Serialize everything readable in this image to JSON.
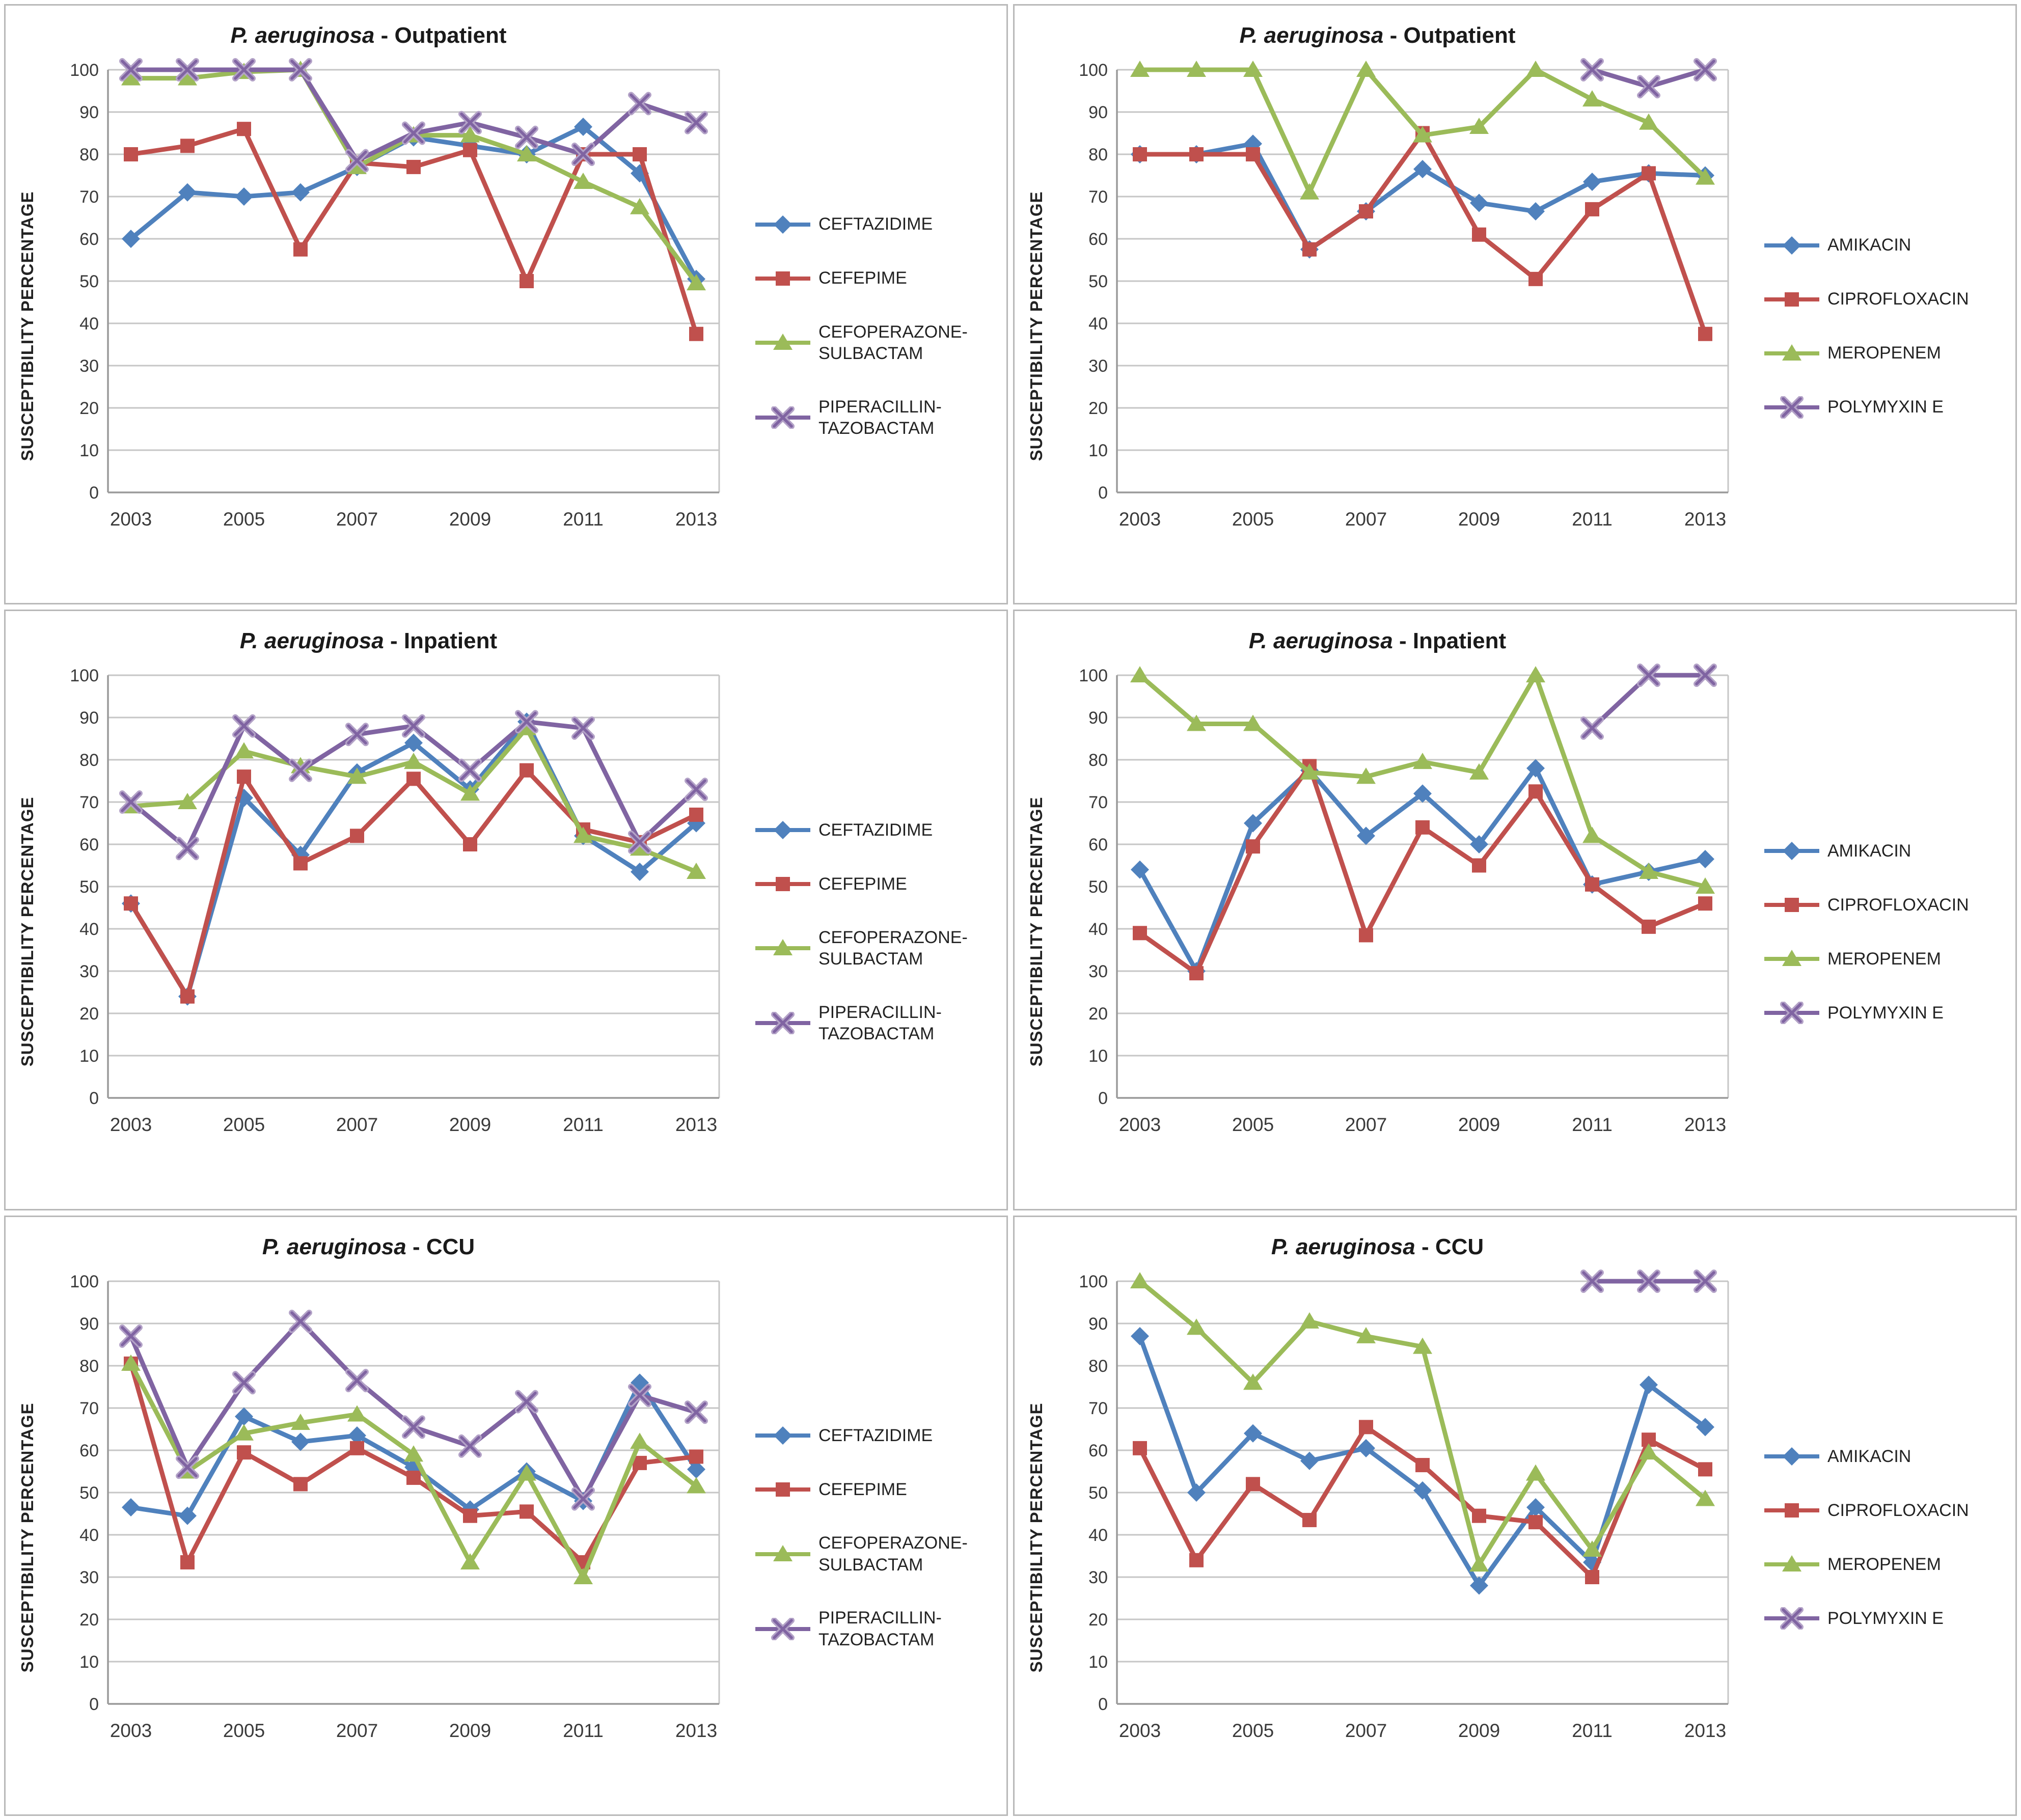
{
  "page": {
    "ylabel": "SUSCEPTIBILITY  PERCENTAGE"
  },
  "palette": {
    "blue": "#4F81BD",
    "red": "#C0504D",
    "green": "#9BBB59",
    "purple": "#8064A2"
  },
  "chart_data": [
    {
      "type": "line",
      "id": "outpatient-left",
      "title_italic": "P. aeruginosa",
      "title_suffix": " - Outpatient",
      "ylabel": "SUSCEPTIBILITY  PERCENTAGE",
      "x": [
        2003,
        2004,
        2005,
        2006,
        2007,
        2008,
        2009,
        2010,
        2011,
        2012,
        2013
      ],
      "x_tick_labels": [
        "2003",
        "2005",
        "2007",
        "2009",
        "2011",
        "2013"
      ],
      "ylim": [
        0,
        100
      ],
      "y_tick_step": 10,
      "grid": true,
      "legend_position": "right",
      "series": [
        {
          "name": "CEFTAZIDIME",
          "legend_label": "CEFTAZIDIME",
          "color": "#4F81BD",
          "marker": "diamond",
          "values": [
            60,
            71,
            70,
            71,
            77,
            84,
            82,
            80,
            86.5,
            75.5,
            50.5
          ]
        },
        {
          "name": "CEFEPIME",
          "legend_label": "CEFEPIME",
          "color": "#C0504D",
          "marker": "square",
          "values": [
            80,
            82,
            86,
            57.5,
            78,
            77,
            81,
            50,
            80,
            80,
            37.5
          ]
        },
        {
          "name": "CEFOPERAZONE-SULBACTAM",
          "legend_label": "CEFOPERAZONE-\nSULBACTAM",
          "color": "#9BBB59",
          "marker": "triangle",
          "values": [
            98,
            98,
            99.5,
            100,
            77,
            84.5,
            84.5,
            80,
            73.5,
            67.5,
            49.5
          ]
        },
        {
          "name": "PIPERACILLIN-TAZOBACTAM",
          "legend_label": "PIPERACILLIN-\nTAZOBACTAM",
          "color": "#8064A2",
          "marker": "x",
          "values": [
            100,
            100,
            100,
            100,
            78.5,
            85,
            87.5,
            84,
            80,
            92,
            87.5
          ]
        }
      ]
    },
    {
      "type": "line",
      "id": "outpatient-right",
      "title_italic": "P. aeruginosa",
      "title_suffix": " - Outpatient",
      "ylabel": "SUSCEPTIBILITY  PERCENTAGE",
      "x": [
        2003,
        2004,
        2005,
        2006,
        2007,
        2008,
        2009,
        2010,
        2011,
        2012,
        2013
      ],
      "x_tick_labels": [
        "2003",
        "2005",
        "2007",
        "2009",
        "2011",
        "2013"
      ],
      "ylim": [
        0,
        100
      ],
      "y_tick_step": 10,
      "grid": true,
      "legend_position": "right",
      "series": [
        {
          "name": "AMIKACIN",
          "legend_label": "AMIKACIN",
          "color": "#4F81BD",
          "marker": "diamond",
          "values": [
            80,
            80,
            82.5,
            57.5,
            66.5,
            76.5,
            68.5,
            66.5,
            73.5,
            75.5,
            75
          ]
        },
        {
          "name": "CIPROFLOXACIN",
          "legend_label": "CIPROFLOXACIN",
          "color": "#C0504D",
          "marker": "square",
          "values": [
            80,
            80,
            80,
            57.5,
            66.5,
            85,
            61,
            50.5,
            67,
            75.5,
            37.5
          ]
        },
        {
          "name": "MEROPENEM",
          "legend_label": "MEROPENEM",
          "color": "#9BBB59",
          "marker": "triangle",
          "values": [
            100,
            100,
            100,
            71,
            100,
            84.5,
            86.5,
            100,
            93,
            87.5,
            74.5
          ]
        },
        {
          "name": "POLYMYXIN E",
          "legend_label": "POLYMYXIN E",
          "color": "#8064A2",
          "marker": "x",
          "values": [
            null,
            null,
            null,
            null,
            null,
            null,
            null,
            null,
            100,
            96,
            100
          ]
        }
      ]
    },
    {
      "type": "line",
      "id": "inpatient-left",
      "title_italic": "P. aeruginosa",
      "title_suffix": " - Inpatient",
      "ylabel": "SUSCEPTIBILITY  PERCENTAGE",
      "x": [
        2003,
        2004,
        2005,
        2006,
        2007,
        2008,
        2009,
        2010,
        2011,
        2012,
        2013
      ],
      "x_tick_labels": [
        "2003",
        "2005",
        "2007",
        "2009",
        "2011",
        "2013"
      ],
      "ylim": [
        0,
        100
      ],
      "y_tick_step": 10,
      "grid": true,
      "legend_position": "right",
      "series": [
        {
          "name": "CEFTAZIDIME",
          "legend_label": "CEFTAZIDIME",
          "color": "#4F81BD",
          "marker": "diamond",
          "values": [
            46,
            24,
            71,
            57.5,
            77,
            84,
            73,
            89,
            62,
            53.5,
            65
          ]
        },
        {
          "name": "CEFEPIME",
          "legend_label": "CEFEPIME",
          "color": "#C0504D",
          "marker": "square",
          "values": [
            46,
            24,
            76,
            55.5,
            62,
            75.5,
            60,
            77.5,
            63.5,
            60.5,
            67
          ]
        },
        {
          "name": "CEFOPERAZONE-SULBACTAM",
          "legend_label": "CEFOPERAZONE-\nSULBACTAM",
          "color": "#9BBB59",
          "marker": "triangle",
          "values": [
            69,
            70,
            82,
            78.5,
            76,
            79.5,
            72,
            87.5,
            62,
            59,
            53.5
          ]
        },
        {
          "name": "PIPERACILLIN-TAZOBACTAM",
          "legend_label": "PIPERACILLIN-\nTAZOBACTAM",
          "color": "#8064A2",
          "marker": "x",
          "values": [
            70,
            59,
            88,
            77.5,
            86,
            88,
            77.5,
            89,
            87.5,
            60.5,
            73
          ]
        }
      ]
    },
    {
      "type": "line",
      "id": "inpatient-right",
      "title_italic": "P. aeruginosa",
      "title_suffix": " - Inpatient",
      "ylabel": "SUSCEPTIBILITY  PERCENTAGE",
      "x": [
        2003,
        2004,
        2005,
        2006,
        2007,
        2008,
        2009,
        2010,
        2011,
        2012,
        2013
      ],
      "x_tick_labels": [
        "2003",
        "2005",
        "2007",
        "2009",
        "2011",
        "2013"
      ],
      "ylim": [
        0,
        100
      ],
      "y_tick_step": 10,
      "grid": true,
      "legend_position": "right",
      "series": [
        {
          "name": "AMIKACIN",
          "legend_label": "AMIKACIN",
          "color": "#4F81BD",
          "marker": "diamond",
          "values": [
            54,
            30,
            65,
            77.5,
            62,
            72,
            60,
            78,
            50.5,
            53.5,
            56.5
          ]
        },
        {
          "name": "CIPROFLOXACIN",
          "legend_label": "CIPROFLOXACIN",
          "color": "#C0504D",
          "marker": "square",
          "values": [
            39,
            29.5,
            59.5,
            78.5,
            38.5,
            64,
            55,
            72.5,
            50.5,
            40.5,
            46
          ]
        },
        {
          "name": "MEROPENEM",
          "legend_label": "MEROPENEM",
          "color": "#9BBB59",
          "marker": "triangle",
          "values": [
            100,
            88.5,
            88.5,
            77,
            76,
            79.5,
            77,
            100,
            62,
            53.5,
            50
          ]
        },
        {
          "name": "POLYMYXIN E",
          "legend_label": "POLYMYXIN E",
          "color": "#8064A2",
          "marker": "x",
          "values": [
            null,
            null,
            null,
            null,
            null,
            null,
            null,
            null,
            87.5,
            100,
            100
          ]
        }
      ]
    },
    {
      "type": "line",
      "id": "ccu-left",
      "title_italic": "P. aeruginosa",
      "title_suffix": " - CCU",
      "ylabel": "SUSCEPTIBILITY  PERCENTAGE",
      "x": [
        2003,
        2004,
        2005,
        2006,
        2007,
        2008,
        2009,
        2010,
        2011,
        2012,
        2013
      ],
      "x_tick_labels": [
        "2003",
        "2005",
        "2007",
        "2009",
        "2011",
        "2013"
      ],
      "ylim": [
        0,
        100
      ],
      "y_tick_step": 10,
      "grid": true,
      "legend_position": "right",
      "series": [
        {
          "name": "CEFTAZIDIME",
          "legend_label": "CEFTAZIDIME",
          "color": "#4F81BD",
          "marker": "diamond",
          "values": [
            46.5,
            44.5,
            68,
            62,
            63.5,
            56,
            46,
            55,
            48,
            76,
            55.5
          ]
        },
        {
          "name": "CEFEPIME",
          "legend_label": "CEFEPIME",
          "color": "#C0504D",
          "marker": "square",
          "values": [
            80.5,
            33.5,
            59.5,
            52,
            60.5,
            53.5,
            44.5,
            45.5,
            33.5,
            57,
            58.5
          ]
        },
        {
          "name": "CEFOPERAZONE-SULBACTAM",
          "legend_label": "CEFOPERAZONE-\nSULBACTAM",
          "color": "#9BBB59",
          "marker": "triangle",
          "values": [
            80.5,
            55,
            64,
            66.5,
            68.5,
            59,
            33.5,
            54.5,
            30,
            62,
            51.5
          ]
        },
        {
          "name": "PIPERACILLIN-TAZOBACTAM",
          "legend_label": "PIPERACILLIN-\nTAZOBACTAM",
          "color": "#8064A2",
          "marker": "x",
          "values": [
            87,
            56,
            76,
            90.5,
            76.5,
            65.5,
            61,
            71.5,
            48.5,
            73,
            69
          ]
        }
      ]
    },
    {
      "type": "line",
      "id": "ccu-right",
      "title_italic": "P. aeruginosa",
      "title_suffix": " - CCU",
      "ylabel": "SUSCEPTIBILITY  PERCENTAGE",
      "x": [
        2003,
        2004,
        2005,
        2006,
        2007,
        2008,
        2009,
        2010,
        2011,
        2012,
        2013
      ],
      "x_tick_labels": [
        "2003",
        "2005",
        "2007",
        "2009",
        "2011",
        "2013"
      ],
      "ylim": [
        0,
        100
      ],
      "y_tick_step": 10,
      "grid": true,
      "legend_position": "right",
      "series": [
        {
          "name": "AMIKACIN",
          "legend_label": "AMIKACIN",
          "color": "#4F81BD",
          "marker": "diamond",
          "values": [
            87,
            50,
            64,
            57.5,
            60.5,
            50.5,
            28,
            46.5,
            33.5,
            75.5,
            65.5
          ]
        },
        {
          "name": "CIPROFLOXACIN",
          "legend_label": "CIPROFLOXACIN",
          "color": "#C0504D",
          "marker": "square",
          "values": [
            60.5,
            34,
            52,
            43.5,
            65.5,
            56.5,
            44.5,
            43,
            30,
            62.5,
            55.5
          ]
        },
        {
          "name": "MEROPENEM",
          "legend_label": "MEROPENEM",
          "color": "#9BBB59",
          "marker": "triangle",
          "values": [
            100,
            89,
            76,
            90.5,
            87,
            84.5,
            33,
            54.5,
            36.5,
            59.5,
            48.5
          ]
        },
        {
          "name": "POLYMYXIN E",
          "legend_label": "POLYMYXIN E",
          "color": "#8064A2",
          "marker": "x",
          "values": [
            null,
            null,
            null,
            null,
            null,
            null,
            null,
            null,
            100,
            100,
            100
          ]
        }
      ]
    }
  ]
}
